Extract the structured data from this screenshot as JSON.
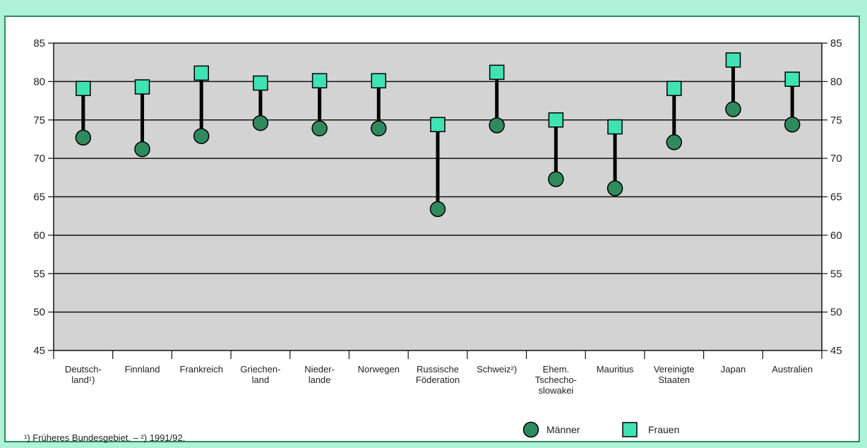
{
  "chart_data": {
    "type": "scatter",
    "title": "",
    "xlabel": "",
    "ylabel": "",
    "ylim": [
      45,
      85
    ],
    "yticks": [
      45,
      50,
      55,
      60,
      65,
      70,
      75,
      80,
      85
    ],
    "grid": true,
    "legend_position": "bottom-right",
    "categories": [
      [
        "Deutsch-",
        "land¹)"
      ],
      [
        "Finnland"
      ],
      [
        "Frankreich"
      ],
      [
        "Griechen-",
        "land"
      ],
      [
        "Nieder-",
        "lande"
      ],
      [
        "Norwegen"
      ],
      [
        "Russische",
        "Föderation"
      ],
      [
        "Schweiz²)"
      ],
      [
        "Ehem.",
        "Tschecho-",
        "slowakei"
      ],
      [
        "Mauritius"
      ],
      [
        "Vereinigte",
        "Staaten"
      ],
      [
        "Japan"
      ],
      [
        "Australien"
      ]
    ],
    "series": [
      {
        "name": "Männer",
        "marker": "circle",
        "color": "#2f8a5e",
        "values": [
          72.7,
          71.2,
          72.9,
          74.6,
          73.9,
          73.9,
          63.4,
          74.3,
          67.3,
          66.1,
          72.1,
          76.4,
          74.4
        ]
      },
      {
        "name": "Frauen",
        "marker": "square",
        "color": "#3fe3b3",
        "values": [
          79.1,
          79.3,
          81.1,
          79.8,
          80.1,
          80.1,
          74.4,
          81.2,
          75.0,
          74.1,
          79.1,
          82.8,
          80.3
        ]
      }
    ]
  },
  "footnote": "¹) Früheres Bundesgebiet. – ²) 1991/92."
}
